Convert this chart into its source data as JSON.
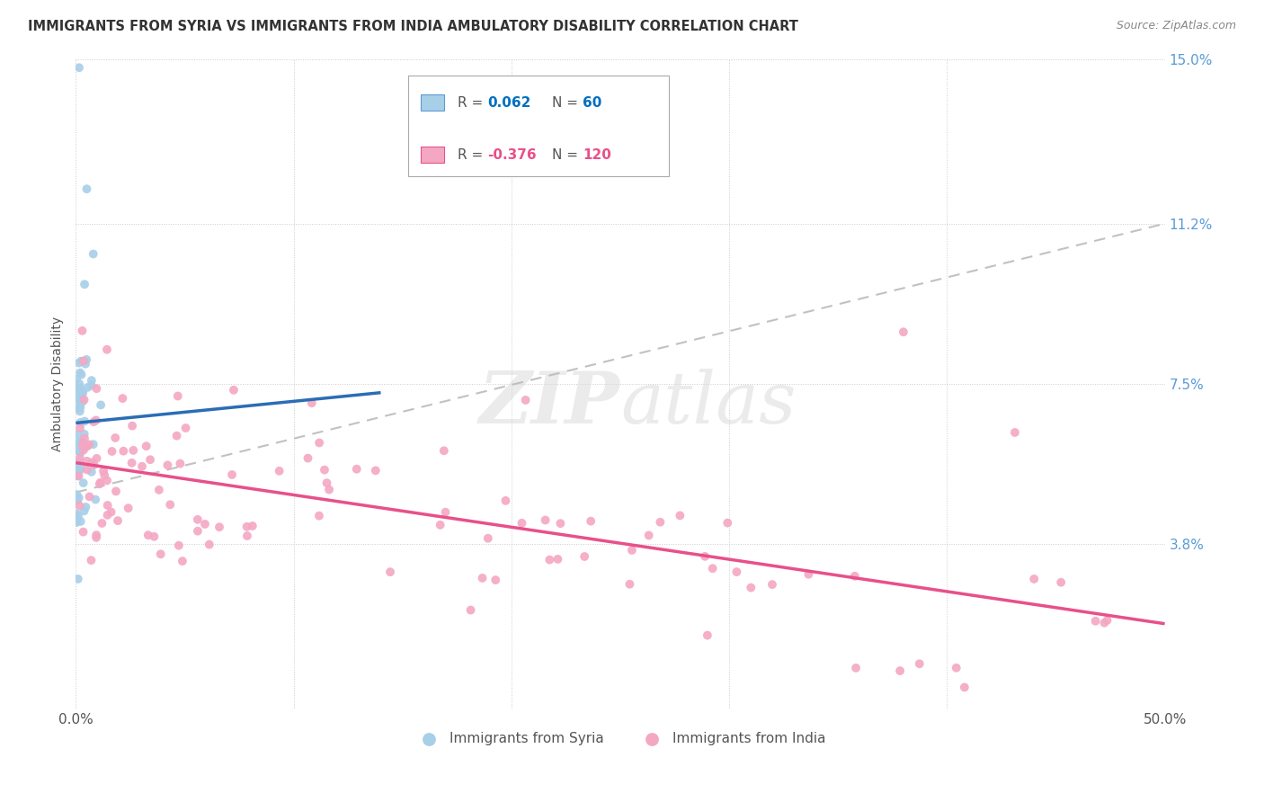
{
  "title": "IMMIGRANTS FROM SYRIA VS IMMIGRANTS FROM INDIA AMBULATORY DISABILITY CORRELATION CHART",
  "source": "Source: ZipAtlas.com",
  "ylabel": "Ambulatory Disability",
  "xlim": [
    0.0,
    0.5
  ],
  "ylim": [
    0.0,
    0.15
  ],
  "yticks": [
    0.0,
    0.038,
    0.075,
    0.112,
    0.15
  ],
  "ytick_labels": [
    "",
    "3.8%",
    "7.5%",
    "11.2%",
    "15.0%"
  ],
  "xtick_labels": [
    "0.0%",
    "",
    "",
    "",
    "",
    "50.0%"
  ],
  "xticks": [
    0.0,
    0.1,
    0.2,
    0.3,
    0.4,
    0.5
  ],
  "syria_R": 0.062,
  "syria_N": 60,
  "india_R": -0.376,
  "india_N": 120,
  "syria_color": "#a8cfe8",
  "india_color": "#f4a7c3",
  "syria_line_color": "#2b6db5",
  "india_line_color": "#e8508a",
  "dashed_line_color": "#bbbbbb",
  "background_color": "#ffffff",
  "grid_color": "#cccccc",
  "watermark_color": "#d8d8d8",
  "title_color": "#333333",
  "source_color": "#888888",
  "axis_label_color": "#555555",
  "tick_label_color_right": "#5b9bd5",
  "legend_R_syria_color": "#0070c0",
  "legend_N_syria_color": "#0070c0",
  "legend_R_india_color": "#e8508a",
  "legend_N_india_color": "#e8508a"
}
